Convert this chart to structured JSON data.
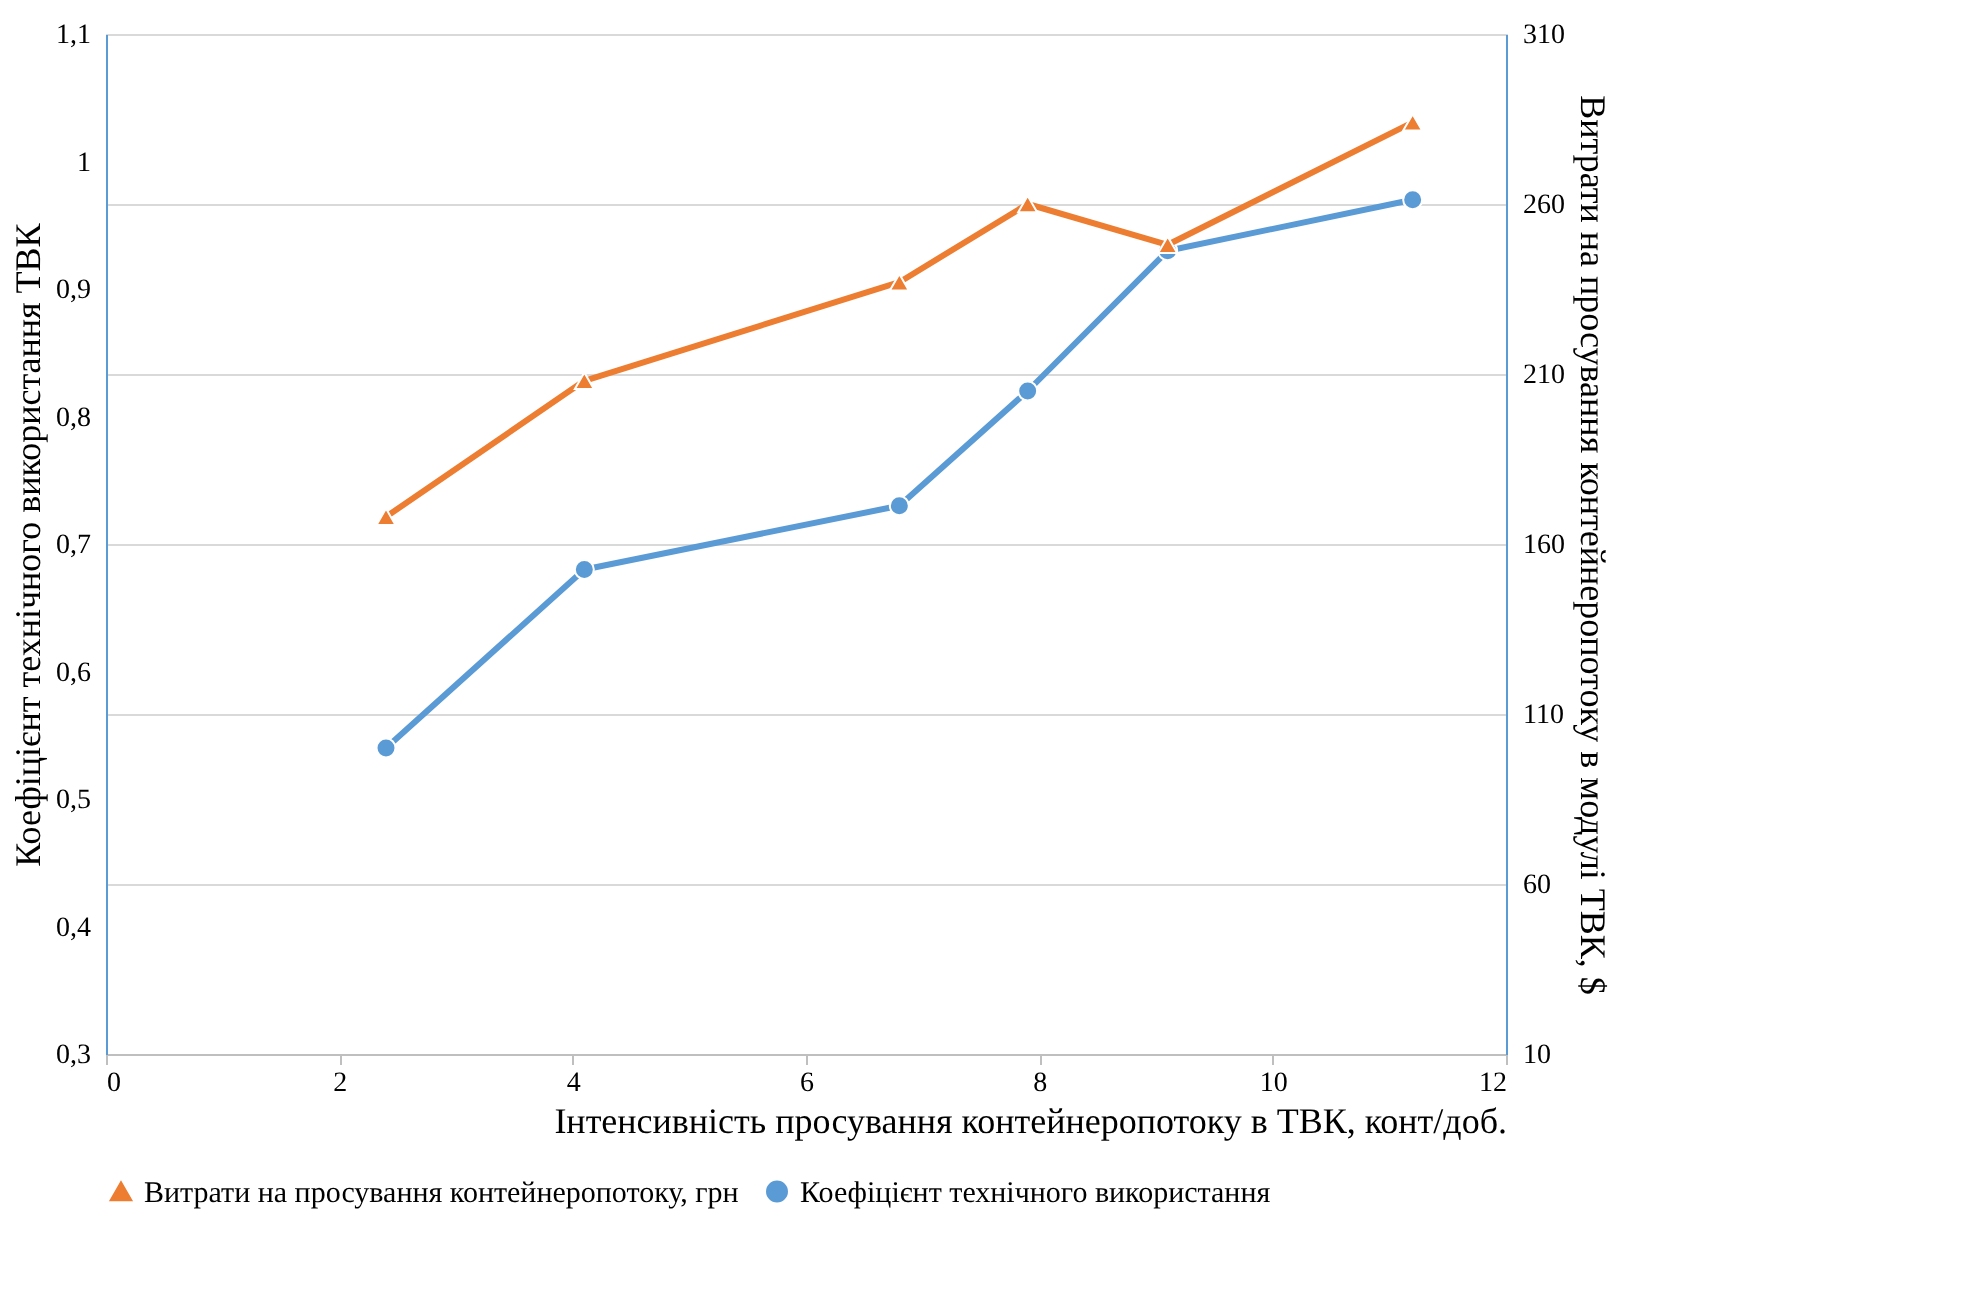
{
  "chart_data": {
    "type": "line",
    "xlabel": "Інтенсивність просування контейнеропотоку в ТВК, конт/доб.",
    "ylabel": "Коефіцієнт технічного використання ТВК",
    "y2label": "Витрати на просування контейнеропотоку в модулі ТВК, $",
    "x": [
      2.4,
      4.1,
      6.8,
      7.9,
      9.1,
      11.2
    ],
    "series": [
      {
        "name": "Витрати на просування контейнеропотоку, грн",
        "color": "#ed7d31",
        "marker": "triangle",
        "axis": "y2",
        "values": [
          168,
          208,
          237,
          260,
          248,
          284
        ]
      },
      {
        "name": "Коефіцієнт технічного використання",
        "color": "#5b9bd5",
        "marker": "circle",
        "values": [
          0.54,
          0.68,
          0.73,
          0.82,
          0.93,
          0.97
        ]
      }
    ],
    "xlim": [
      0,
      12
    ],
    "xticks": [
      0,
      2,
      4,
      6,
      8,
      10,
      12
    ],
    "ylim": [
      0.3,
      1.1
    ],
    "yticks": [
      {
        "value": 0.3,
        "label": "0,3"
      },
      {
        "value": 0.4,
        "label": "0,4"
      },
      {
        "value": 0.5,
        "label": "0,5"
      },
      {
        "value": 0.6,
        "label": "0,6"
      },
      {
        "value": 0.7,
        "label": "0,7"
      },
      {
        "value": 0.8,
        "label": "0,8"
      },
      {
        "value": 0.9,
        "label": "0,9"
      },
      {
        "value": 1,
        "label": "1"
      },
      {
        "value": 1.1,
        "label": "1,1"
      }
    ],
    "y2lim": [
      10,
      310
    ],
    "y2ticks": [
      10,
      60,
      110,
      160,
      210,
      260,
      310
    ],
    "grid": "y2",
    "legend": "bottom",
    "line_style": "solid"
  }
}
